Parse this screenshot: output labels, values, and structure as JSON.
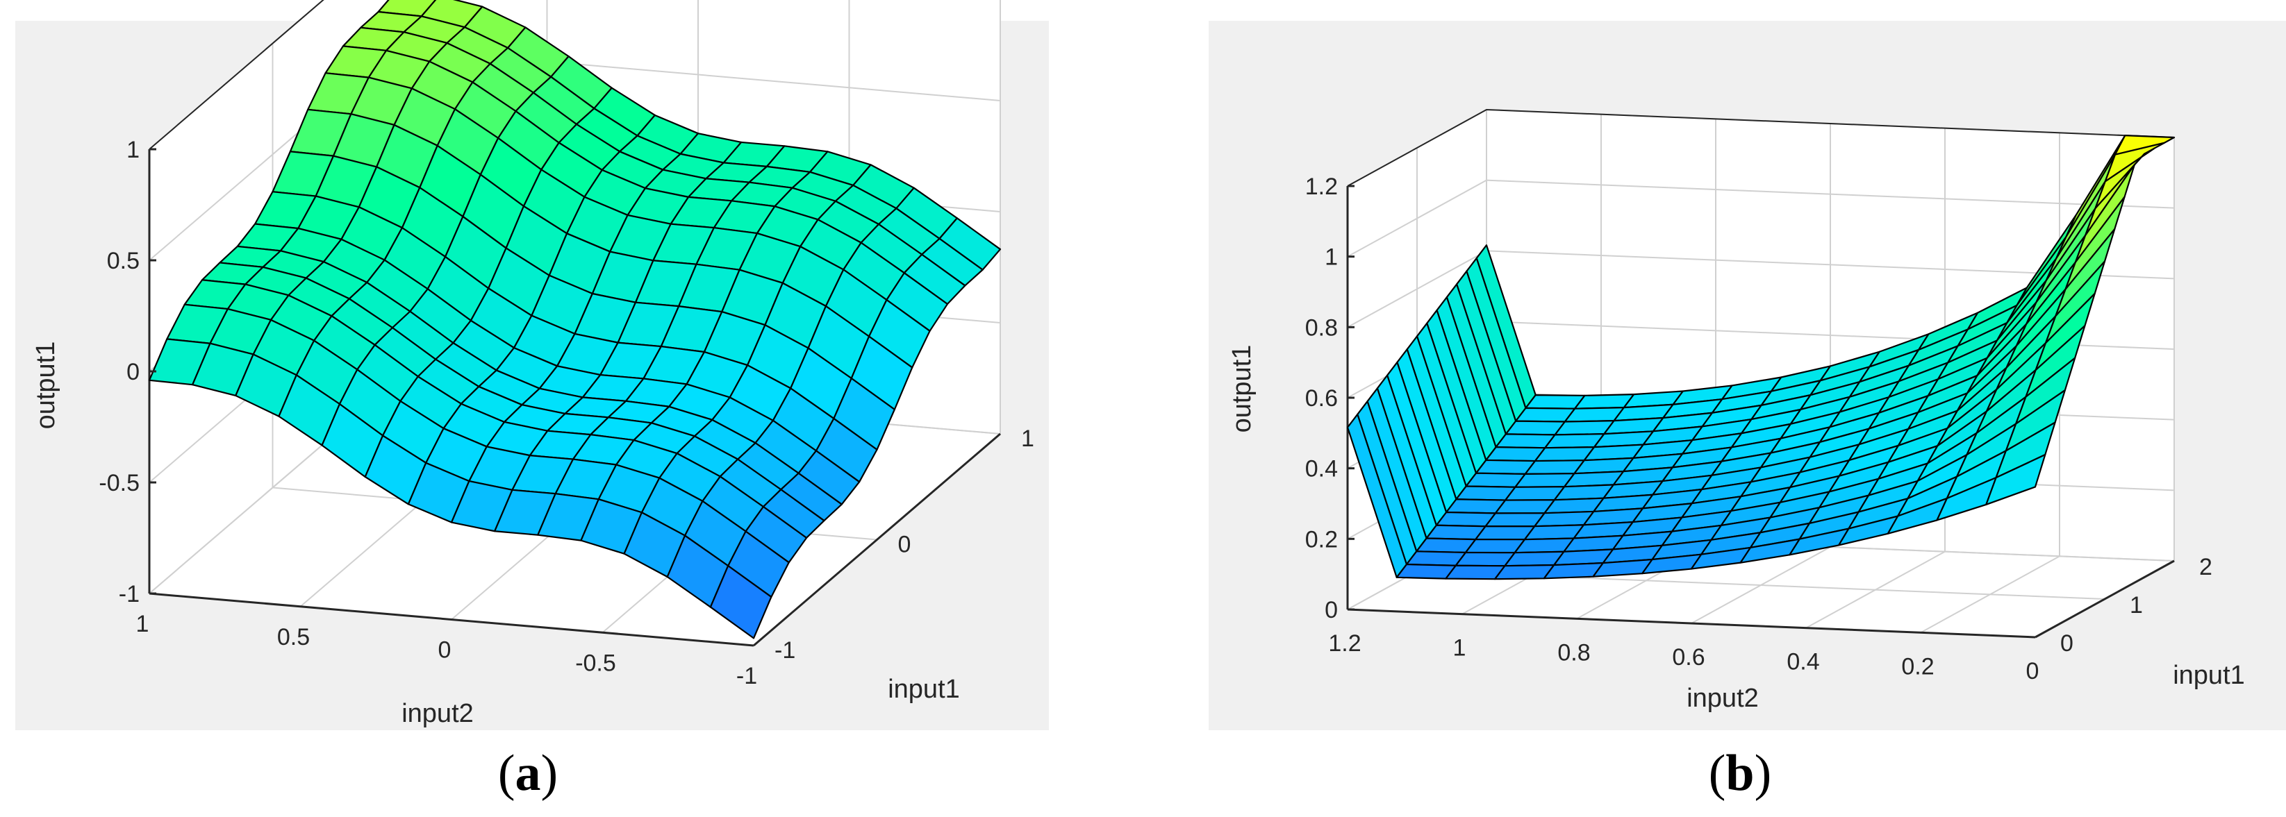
{
  "chart_data": [
    {
      "type": "surface",
      "panel_label": "a",
      "xlabel": "input2",
      "ylabel": "input1",
      "zlabel": "output1",
      "x_range": [
        -1,
        1
      ],
      "y_range": [
        -1,
        1
      ],
      "z_range": [
        -1,
        1
      ],
      "x_ticks": [
        "1",
        "0.5",
        "0",
        "-0.5",
        "-1"
      ],
      "y_ticks": [
        "-1",
        "0",
        "1"
      ],
      "z_ticks": [
        "1",
        "0.5",
        "0",
        "-0.5",
        "-1"
      ],
      "grid_size": [
        15,
        15
      ],
      "surface_description_values": {
        "corner_x1_y1": 1.0,
        "corner_x1_yminus1": 0.0,
        "corner_xminus1_y1": 0.3,
        "corner_xminus1_yminus1": -1.0
      },
      "colormap": [
        "#1e63ff",
        "#00e0ff",
        "#00ff99",
        "#ffff00"
      ],
      "grid": true
    },
    {
      "type": "surface",
      "panel_label": "b",
      "xlabel": "input2",
      "ylabel": "input1",
      "zlabel": "output1",
      "x_range": [
        0,
        1.2
      ],
      "y_range": [
        0,
        2
      ],
      "z_range": [
        0,
        1.2
      ],
      "x_ticks": [
        "1.2",
        "1",
        "0.8",
        "0.6",
        "0.4",
        "0.2",
        "0"
      ],
      "y_ticks": [
        "0",
        "1",
        "2"
      ],
      "z_ticks": [
        "1.2",
        "1",
        "0.8",
        "0.6",
        "0.4",
        "0.2",
        "0"
      ],
      "grid_size": [
        15,
        15
      ],
      "surface_description_values": {
        "corner_x1.2_y0": 0.5,
        "corner_x1.2_y2": 0.9,
        "corner_x0_y0": 0.0,
        "corner_x0_y2": 1.2
      },
      "colormap": [
        "#1e63ff",
        "#00e0ff",
        "#00ff99",
        "#ffff00"
      ],
      "grid": true
    }
  ],
  "captions": {
    "a": {
      "open": "(",
      "letter": "a",
      "close": ")"
    },
    "b": {
      "open": "(",
      "letter": "b",
      "close": ")"
    }
  }
}
